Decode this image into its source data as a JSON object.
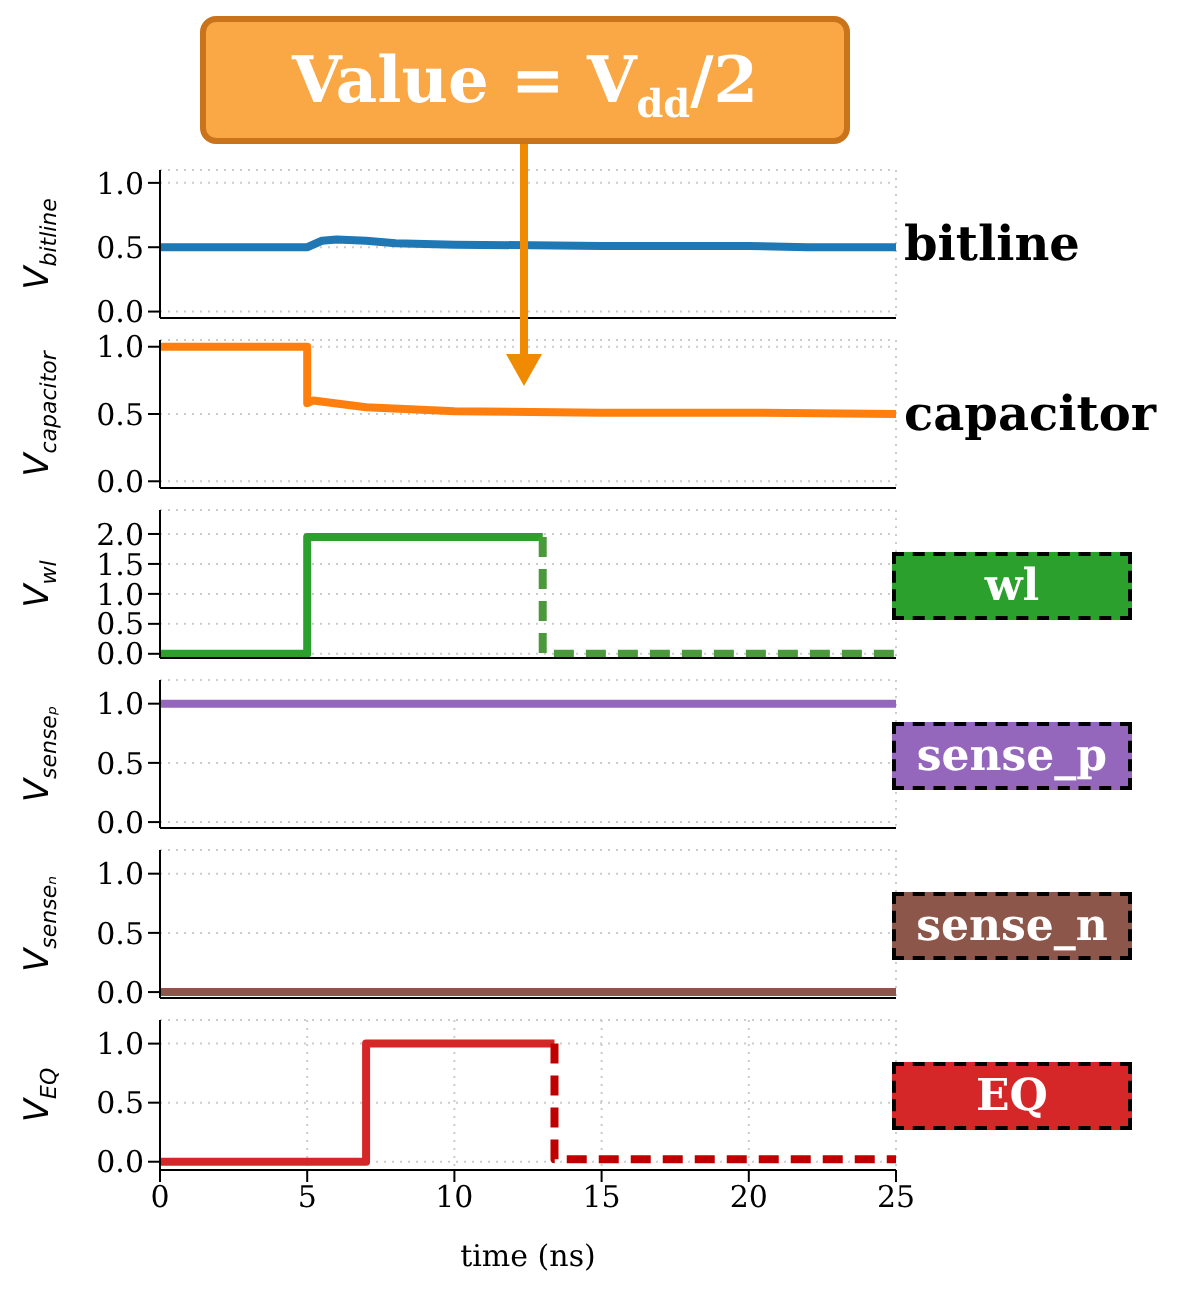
{
  "chart_data": [
    {
      "type": "line",
      "ylabel": "V$_{bitline}$",
      "xlim": [
        0,
        25
      ],
      "xticks": [
        0,
        5,
        10,
        15,
        20,
        25
      ],
      "ylim": [
        -0.05,
        1.1
      ],
      "yticks": [
        {
          "value": 0,
          "label": "0.0"
        },
        {
          "value": 0.5,
          "label": "0.5"
        },
        {
          "value": 1,
          "label": "1.0"
        }
      ],
      "grid": true,
      "tick_labels": "y",
      "annotations": [
        "bitline"
      ],
      "series": [
        {
          "color": "#1f77b4",
          "x": [
            0,
            5,
            5.5,
            6,
            7,
            8,
            10,
            15,
            20,
            22,
            25
          ],
          "values": [
            0.5,
            0.5,
            0.55,
            0.56,
            0.55,
            0.53,
            0.52,
            0.51,
            0.51,
            0.5,
            0.5
          ]
        }
      ]
    },
    {
      "type": "line",
      "ylabel": "V$_{capacitor}$",
      "xlim": [
        0,
        25
      ],
      "xticks": [
        0,
        5,
        10,
        15,
        20,
        25
      ],
      "ylim": [
        -0.05,
        1.05
      ],
      "yticks": [
        {
          "value": 0,
          "label": "0.0"
        },
        {
          "value": 0.5,
          "label": "0.5"
        },
        {
          "value": 1,
          "label": "1.0"
        }
      ],
      "grid": true,
      "tick_labels": "y",
      "annotations": [
        "capacitor",
        "Value = V$_{dd}$/2"
      ],
      "series": [
        {
          "color": "#ff7f0e",
          "x": [
            0,
            5,
            5,
            5.2,
            7,
            10,
            15,
            20,
            25
          ],
          "values": [
            1.0,
            1.0,
            0.58,
            0.6,
            0.55,
            0.52,
            0.51,
            0.51,
            0.5
          ]
        }
      ]
    },
    {
      "type": "line",
      "ylabel": "V$_{wl}$",
      "xlim": [
        0,
        25
      ],
      "xticks": [
        0,
        5,
        10,
        15,
        20,
        25
      ],
      "ylim": [
        -0.07,
        2.4
      ],
      "yticks": [
        {
          "value": 0,
          "label": "0.0"
        },
        {
          "value": 0.5,
          "label": "0.5"
        },
        {
          "value": 1,
          "label": "1.0"
        },
        {
          "value": 1.5,
          "label": "1.5"
        },
        {
          "value": 2,
          "label": "2.0"
        }
      ],
      "grid": true,
      "tick_labels": "y",
      "legend": "right",
      "series": [
        {
          "name": "wl",
          "color": "#2ca02c",
          "line_style": "solid",
          "x": [
            0,
            5,
            5,
            13
          ],
          "values": [
            0,
            0,
            1.95,
            1.95
          ]
        },
        {
          "color": "#4a9a3c",
          "line_style": "dashed",
          "x": [
            13,
            13,
            25
          ],
          "values": [
            1.95,
            0,
            0
          ]
        }
      ]
    },
    {
      "type": "line",
      "ylabel": "V$_{senseₚ}$",
      "xlim": [
        0,
        25
      ],
      "xticks": [
        0,
        5,
        10,
        15,
        20,
        25
      ],
      "ylim": [
        -0.05,
        1.2
      ],
      "yticks": [
        {
          "value": 0,
          "label": "0.0"
        },
        {
          "value": 0.5,
          "label": "0.5"
        },
        {
          "value": 1,
          "label": "1.0"
        }
      ],
      "grid": true,
      "tick_labels": "y",
      "legend": "right",
      "series": [
        {
          "name": "sense_p",
          "color": "#9467bd",
          "x": [
            0,
            25
          ],
          "values": [
            1,
            1
          ]
        }
      ]
    },
    {
      "type": "line",
      "ylabel": "V$_{senseₙ}$",
      "xlim": [
        0,
        25
      ],
      "xticks": [
        0,
        5,
        10,
        15,
        20,
        25
      ],
      "ylim": [
        -0.05,
        1.2
      ],
      "yticks": [
        {
          "value": 0,
          "label": "0.0"
        },
        {
          "value": 0.5,
          "label": "0.5"
        },
        {
          "value": 1,
          "label": "1.0"
        }
      ],
      "grid": true,
      "tick_labels": "y",
      "legend": "right",
      "series": [
        {
          "name": "sense_n",
          "color": "#8c564b",
          "x": [
            0,
            25
          ],
          "values": [
            0,
            0
          ]
        }
      ]
    },
    {
      "type": "line",
      "ylabel": "V$_{EQ}$",
      "xlabel": "time (ns)",
      "xlim": [
        0,
        25
      ],
      "xticks": [
        0,
        5,
        10,
        15,
        20,
        25
      ],
      "ylim": [
        -0.07,
        1.2
      ],
      "yticks": [
        {
          "value": 0,
          "label": "0.0"
        },
        {
          "value": 0.5,
          "label": "0.5"
        },
        {
          "value": 1,
          "label": "1.0"
        }
      ],
      "grid": true,
      "legend": "right",
      "series": [
        {
          "name": "EQ",
          "color": "#d62728",
          "line_style": "solid",
          "x": [
            0,
            7,
            7,
            13.4
          ],
          "values": [
            0,
            0,
            1,
            1
          ]
        },
        {
          "color": "#c00000",
          "line_style": "dashed",
          "x": [
            13.4,
            13.4,
            25
          ],
          "values": [
            1,
            0.02,
            0.02
          ]
        }
      ]
    }
  ]
}
